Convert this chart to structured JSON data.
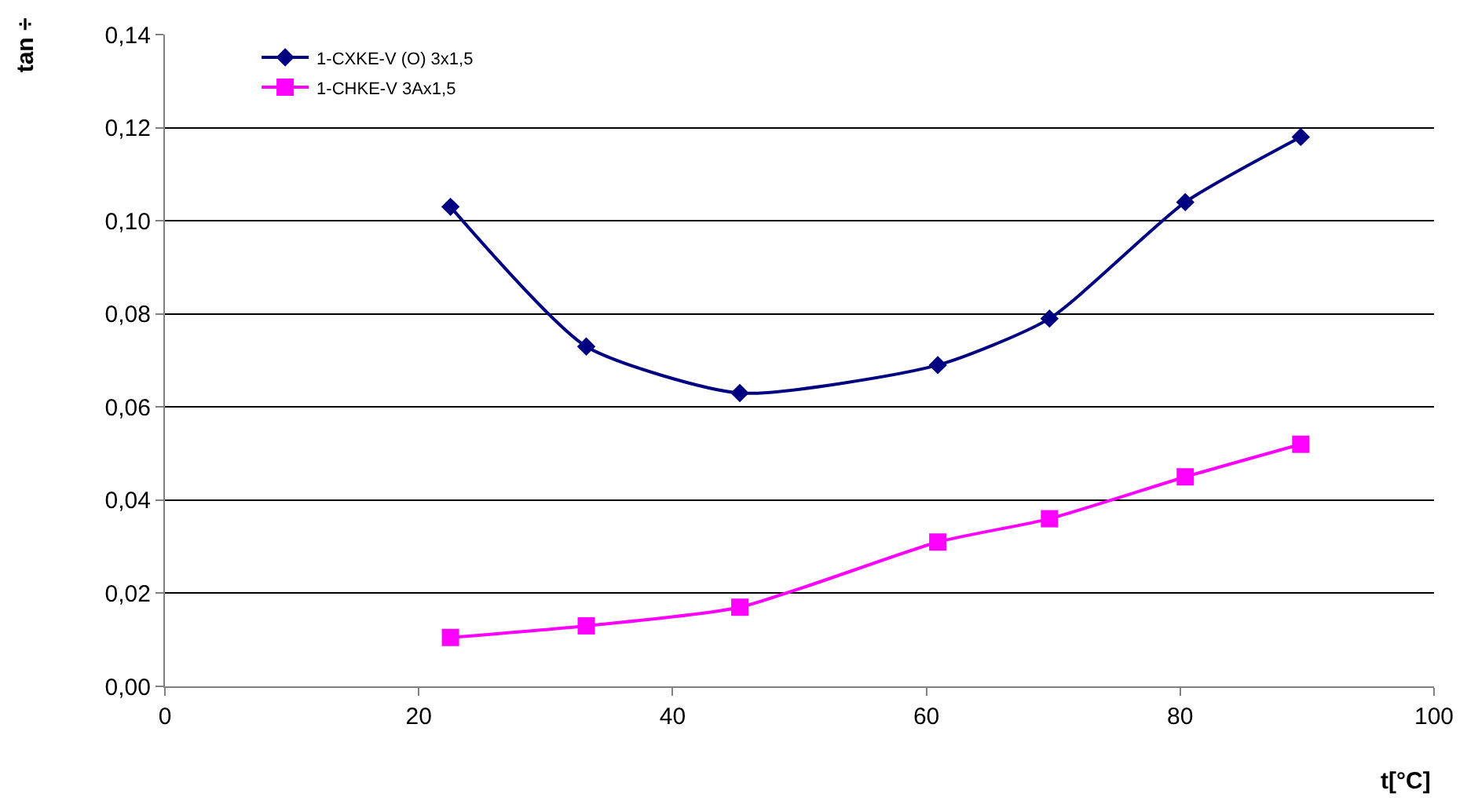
{
  "chart_data": {
    "type": "line",
    "xlabel": "t[°C]",
    "ylabel": "tan ÷",
    "x": [
      22.5,
      33.2,
      45.3,
      60.9,
      69.7,
      80.4,
      89.5
    ],
    "series": [
      {
        "name": "1-CXKE-V (O) 3x1,5",
        "color": "#000080",
        "marker": "diamond",
        "values": [
          0.103,
          0.073,
          0.063,
          0.069,
          0.079,
          0.104,
          0.118
        ]
      },
      {
        "name": "1-CHKE-V 3Ax1,5",
        "color": "#ff00ff",
        "marker": "square",
        "values": [
          0.0105,
          0.013,
          0.017,
          0.031,
          0.036,
          0.045,
          0.052
        ]
      }
    ],
    "xlim": [
      0,
      100
    ],
    "xticks": [
      0,
      20,
      40,
      60,
      80,
      100
    ],
    "ylim": [
      0,
      0.14
    ],
    "yticks": [
      {
        "value": 0,
        "label": "0,00"
      },
      {
        "value": 0.02,
        "label": "0,02"
      },
      {
        "value": 0.04,
        "label": "0,04"
      },
      {
        "value": 0.06,
        "label": "0,06"
      },
      {
        "value": 0.08,
        "label": "0,08"
      },
      {
        "value": 0.1,
        "label": "0,10"
      },
      {
        "value": 0.12,
        "label": "0,12"
      },
      {
        "value": 0.14,
        "label": "0,14"
      }
    ],
    "grid": "y",
    "legend": "top left",
    "line_style": "solid"
  }
}
